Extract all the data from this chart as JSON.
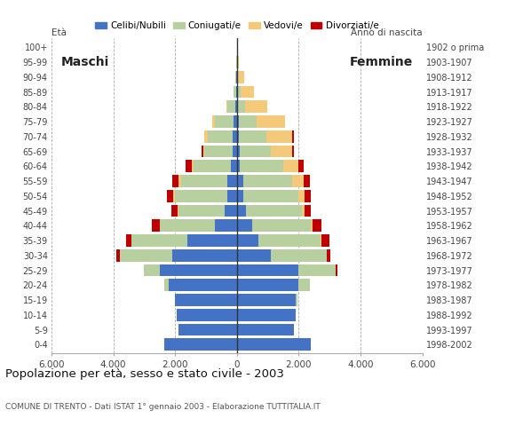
{
  "age_groups": [
    "0-4",
    "5-9",
    "10-14",
    "15-19",
    "20-24",
    "25-29",
    "30-34",
    "35-39",
    "40-44",
    "45-49",
    "50-54",
    "55-59",
    "60-64",
    "65-69",
    "70-74",
    "75-79",
    "80-84",
    "85-89",
    "90-94",
    "95-99",
    "100+"
  ],
  "birth_years": [
    "1998-2002",
    "1993-1997",
    "1988-1992",
    "1983-1987",
    "1978-1982",
    "1973-1977",
    "1968-1972",
    "1963-1967",
    "1958-1962",
    "1953-1957",
    "1948-1952",
    "1943-1947",
    "1938-1942",
    "1933-1937",
    "1928-1932",
    "1923-1927",
    "1918-1922",
    "1913-1917",
    "1908-1912",
    "1903-1907",
    "1902 o prima"
  ],
  "male": {
    "celibi": [
      2350,
      1900,
      1950,
      2000,
      2200,
      2500,
      2100,
      1600,
      700,
      400,
      300,
      300,
      200,
      150,
      150,
      100,
      50,
      20,
      10,
      0,
      0
    ],
    "coniugati": [
      0,
      0,
      0,
      0,
      150,
      500,
      1700,
      1800,
      1800,
      1500,
      1700,
      1500,
      1200,
      900,
      800,
      600,
      250,
      80,
      30,
      10,
      0
    ],
    "vedovi": [
      0,
      0,
      0,
      0,
      0,
      0,
      0,
      0,
      0,
      30,
      50,
      80,
      50,
      50,
      100,
      100,
      50,
      0,
      0,
      0,
      0
    ],
    "divorziati": [
      0,
      0,
      0,
      0,
      0,
      0,
      100,
      200,
      250,
      200,
      200,
      200,
      200,
      50,
      0,
      0,
      0,
      0,
      0,
      0,
      0
    ]
  },
  "female": {
    "nubili": [
      2400,
      1850,
      1900,
      1900,
      2000,
      2000,
      1100,
      700,
      500,
      300,
      200,
      200,
      100,
      100,
      50,
      50,
      20,
      10,
      10,
      0,
      0
    ],
    "coniugate": [
      0,
      0,
      0,
      50,
      350,
      1200,
      1800,
      2000,
      1900,
      1800,
      1800,
      1600,
      1400,
      1000,
      900,
      600,
      250,
      100,
      30,
      10,
      0
    ],
    "vedove": [
      0,
      0,
      0,
      0,
      0,
      0,
      20,
      30,
      50,
      100,
      200,
      350,
      500,
      700,
      850,
      900,
      700,
      450,
      200,
      50,
      0
    ],
    "divorziate": [
      0,
      0,
      0,
      0,
      0,
      50,
      100,
      250,
      300,
      200,
      200,
      200,
      150,
      50,
      50,
      0,
      0,
      0,
      0,
      0,
      0
    ]
  },
  "colors": {
    "celibi": "#4472c4",
    "coniugati": "#b8cfa0",
    "vedovi": "#f5c97a",
    "divorziati": "#c00000"
  },
  "title": "Popolazione per età, sesso e stato civile - 2003",
  "subtitle": "COMUNE DI TRENTO - Dati ISTAT 1° gennaio 2003 - Elaborazione TUTTITALIA.IT",
  "xlim": 6000,
  "xticks": [
    -6000,
    -4000,
    -2000,
    0,
    2000,
    4000,
    6000
  ],
  "xlabel_left": "Età",
  "xlabel_right": "Anno di nascita",
  "label_maschi": "Maschi",
  "label_femmine": "Femmine",
  "legend_labels": [
    "Celibi/Nubili",
    "Coniugati/e",
    "Vedovi/e",
    "Divorziati/e"
  ]
}
